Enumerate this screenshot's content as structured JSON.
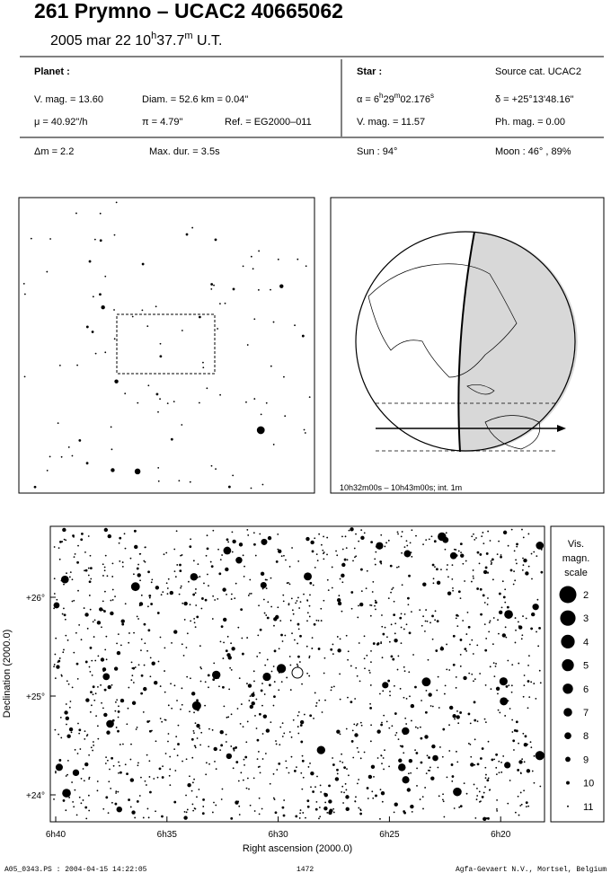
{
  "header": {
    "title": "261 Prymno  –  UCAC2 40665062",
    "date": [
      "2005 mar 22  10",
      "h",
      "37.7",
      "m",
      " U.T."
    ]
  },
  "planet": {
    "label": "Planet :",
    "vmag": "V. mag. = 13.60",
    "diam": "Diam. = 52.6 km = 0.04\"",
    "mu": "μ = 40.92\"/h",
    "pi": "π =  4.79\"",
    "ref": "Ref. = EG2000–011"
  },
  "star": {
    "label": "Star :",
    "source": "Source cat.  UCAC2",
    "alpha": [
      "α =  6",
      "h",
      "29",
      "m",
      "02.176",
      "s"
    ],
    "delta": "δ = +25°13'48.16\"",
    "vmag": "V. mag. = 11.57",
    "phmag": "Ph. mag. =  0.00"
  },
  "event": {
    "dm": "Δm = 2.2",
    "maxdur": "Max. dur. = 3.5s",
    "sun": "Sun :  94°",
    "moon": "Moon :  46° , 89%"
  },
  "globe": {
    "caption": "10h32m00s – 10h43m00s; int.  1m"
  },
  "chart": {
    "xticks": [
      "6h40",
      "6h35",
      "6h30",
      "6h25",
      "6h20"
    ],
    "yticks": [
      "+26°",
      "+25°",
      "+24°"
    ],
    "xlabel": "Right ascension (2000.0)",
    "ylabel": "Declination (2000.0)"
  },
  "scale": {
    "title": [
      "Vis.",
      "magn.",
      "scale"
    ],
    "mags": [
      2,
      3,
      4,
      5,
      6,
      7,
      8,
      9,
      10,
      11
    ]
  },
  "footer": {
    "file": "A05_0343.PS : 2004-04-15 14:22:05",
    "page": "1472",
    "credit": "Agfa-Gevaert N.V., Mortsel, Belgium"
  }
}
